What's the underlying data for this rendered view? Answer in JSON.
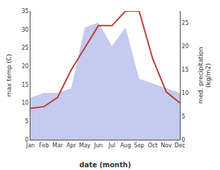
{
  "chart_data": {
    "type": "line",
    "categories": [
      "Jan",
      "Feb",
      "Mar",
      "Apr",
      "May",
      "Jun",
      "Jul",
      "Aug",
      "Sep",
      "Oct",
      "Nov",
      "Dec"
    ],
    "series": [
      {
        "type": "area",
        "axis": "y2",
        "color": "#c5caf0",
        "values": [
          9,
          10,
          10,
          11,
          24,
          25,
          20,
          24,
          13,
          12,
          11,
          10
        ]
      },
      {
        "type": "line",
        "color": "#c0392b",
        "values": [
          8.5,
          9.0,
          11.5,
          19.0,
          25.0,
          31.0,
          31.0,
          35.0,
          35.0,
          22.0,
          13.0,
          10.0
        ]
      }
    ],
    "xlabel": "date (month)",
    "ylabel": "max temp (C)",
    "y2label": "med. precipitation\n(kg/m2)",
    "ylim": [
      0,
      35
    ],
    "yticks": [
      0,
      5,
      10,
      15,
      20,
      25,
      30,
      35
    ],
    "y2lim": [
      0,
      27.5
    ],
    "y2ticks": [
      0,
      5,
      10,
      15,
      20,
      25
    ],
    "grid": false
  }
}
